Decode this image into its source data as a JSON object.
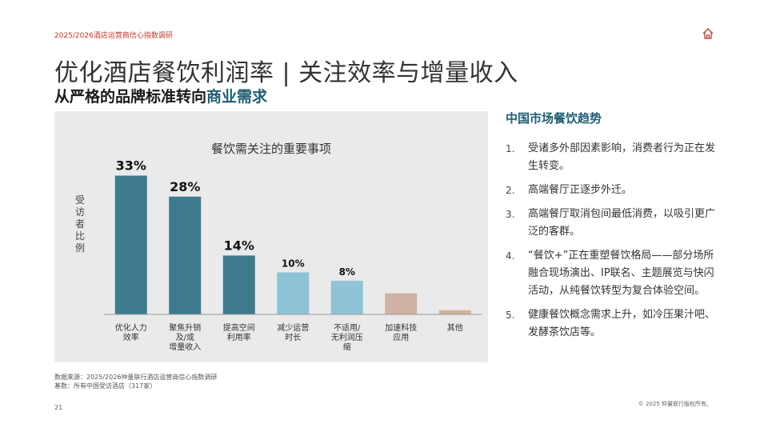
{
  "header": {
    "report_label": "2025/2026酒店运营商信心指数调研",
    "title": "优化酒店餐饮利润率 | 关注效率与增量收入",
    "subtitle_prefix": "从严格的品牌标准转向",
    "subtitle_accent": "商业需求"
  },
  "icons": {
    "home": "home-icon"
  },
  "colors": {
    "dark_bar": "#3e7b8f",
    "light_bar": "#8fc3d6",
    "tan_bar": "#cfb2a1",
    "accent_text": "#1f5f73",
    "header_red": "#c0392b"
  },
  "chart_data": {
    "type": "bar",
    "title": "餐饮需关注的重要事项",
    "ylabel": "受访者比例",
    "xlabel": "",
    "categories": [
      [
        "优化人力",
        "效率"
      ],
      [
        "聚焦升销",
        "及/或",
        "增量收入"
      ],
      [
        "提高空间",
        "利用率"
      ],
      [
        "减少运营",
        "时长"
      ],
      [
        "不适用/",
        "无利润压",
        "缩"
      ],
      [
        "加速科技",
        "应用"
      ],
      [
        "其他"
      ]
    ],
    "values": [
      33,
      28,
      14,
      10,
      8,
      5,
      1
    ],
    "data_labels": [
      "33%",
      "28%",
      "14%",
      "10%",
      "8%",
      "",
      ""
    ],
    "bar_colors": [
      "#3e7b8f",
      "#3e7b8f",
      "#3e7b8f",
      "#8fc3d6",
      "#8fc3d6",
      "#cfb2a1",
      "#cfb2a1"
    ],
    "ylim": [
      0,
      35
    ],
    "grid": false,
    "legend": "none"
  },
  "sidebar": {
    "title": "中国市场餐饮趋势",
    "items": [
      {
        "num": "1.",
        "text": "受诸多外部因素影响，消费者行为正在发生转变。"
      },
      {
        "num": "2.",
        "text": "高端餐厅正逐步外迁。"
      },
      {
        "num": "3.",
        "text": "高端餐厅取消包间最低消费，以吸引更广泛的客群。"
      },
      {
        "num": "4.",
        "text": "“餐饮+”正在重塑餐饮格局——部分场所融合现场演出、IP联名、主题展览与快闪活动，从纯餐饮转型为复合体验空间。"
      },
      {
        "num": "5.",
        "text": "健康餐饮概念需求上升，如冷压果汁吧、发酵茶饮店等。"
      }
    ]
  },
  "footer": {
    "source_line1": "数据来源：2025/2026仲量联行酒店运营商信心指数调研",
    "source_line2": "基数：所有中国受访酒店（317家）",
    "page_number": "21",
    "copyright": "© 2025 仲量联行版权所有。"
  }
}
